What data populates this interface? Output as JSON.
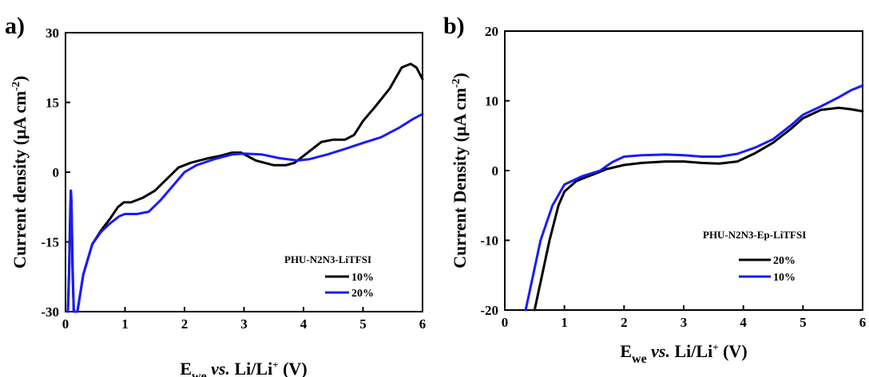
{
  "chart_data": [
    {
      "type": "line",
      "panel_label": "a)",
      "xlabel": {
        "main": "E",
        "sub": "we",
        "italic": "vs.",
        "rest": "Li/Li",
        "sup": "+",
        "unit": "(V)"
      },
      "ylabel": {
        "main": "Current density (μA cm",
        "sup": "-2",
        "end": ")"
      },
      "xlim": [
        0,
        6
      ],
      "ylim": [
        -30,
        30
      ],
      "xticks": [
        0,
        1,
        2,
        3,
        4,
        5,
        6
      ],
      "yticks": [
        -30,
        -15,
        0,
        15,
        30
      ],
      "grid": false,
      "legend": {
        "title": "PHU-N2N3-LiTFSI",
        "placement": "bottom-right"
      },
      "series": [
        {
          "name": "10%",
          "color": "#000000",
          "points": [
            [
              0.04,
              -30
            ],
            [
              0.06,
              -21
            ],
            [
              0.08,
              -8
            ],
            [
              0.09,
              -4
            ],
            [
              0.1,
              -8
            ],
            [
              0.12,
              -22
            ],
            [
              0.14,
              -30
            ],
            [
              0.15,
              -30
            ],
            [
              0.2,
              -30
            ],
            [
              0.3,
              -22
            ],
            [
              0.45,
              -15.5
            ],
            [
              0.6,
              -12.5
            ],
            [
              0.75,
              -10
            ],
            [
              0.88,
              -7.5
            ],
            [
              0.98,
              -6.5
            ],
            [
              1.1,
              -6.5
            ],
            [
              1.3,
              -5.5
            ],
            [
              1.5,
              -4
            ],
            [
              1.7,
              -1.5
            ],
            [
              1.9,
              1
            ],
            [
              2.1,
              2
            ],
            [
              2.4,
              3
            ],
            [
              2.6,
              3.5
            ],
            [
              2.8,
              4.2
            ],
            [
              2.95,
              4.2
            ],
            [
              3.2,
              2.5
            ],
            [
              3.5,
              1.5
            ],
            [
              3.7,
              1.5
            ],
            [
              3.85,
              2
            ],
            [
              4.05,
              4
            ],
            [
              4.3,
              6.5
            ],
            [
              4.5,
              7
            ],
            [
              4.7,
              7
            ],
            [
              4.85,
              8
            ],
            [
              5.0,
              11
            ],
            [
              5.2,
              14
            ],
            [
              5.45,
              18
            ],
            [
              5.65,
              22.5
            ],
            [
              5.8,
              23.3
            ],
            [
              5.9,
              22.5
            ],
            [
              6.0,
              20
            ]
          ]
        },
        {
          "name": "20%",
          "color": "#1a1aff",
          "points": [
            [
              0.04,
              -30
            ],
            [
              0.06,
              -22
            ],
            [
              0.08,
              -10
            ],
            [
              0.09,
              -4
            ],
            [
              0.1,
              -6
            ],
            [
              0.12,
              -20
            ],
            [
              0.14,
              -30
            ],
            [
              0.16,
              -30
            ],
            [
              0.2,
              -30
            ],
            [
              0.3,
              -22
            ],
            [
              0.45,
              -15.5
            ],
            [
              0.6,
              -12.8
            ],
            [
              0.75,
              -11
            ],
            [
              0.9,
              -9.5
            ],
            [
              1.0,
              -9
            ],
            [
              1.2,
              -9
            ],
            [
              1.4,
              -8.5
            ],
            [
              1.6,
              -6
            ],
            [
              1.8,
              -3
            ],
            [
              2.0,
              0
            ],
            [
              2.2,
              1.5
            ],
            [
              2.5,
              2.8
            ],
            [
              2.8,
              3.8
            ],
            [
              3.0,
              4
            ],
            [
              3.3,
              3.8
            ],
            [
              3.6,
              3
            ],
            [
              3.9,
              2.5
            ],
            [
              4.1,
              2.8
            ],
            [
              4.4,
              3.8
            ],
            [
              4.7,
              5
            ],
            [
              5.0,
              6.3
            ],
            [
              5.3,
              7.5
            ],
            [
              5.6,
              9.5
            ],
            [
              5.85,
              11.5
            ],
            [
              6.0,
              12.5
            ]
          ]
        }
      ]
    },
    {
      "type": "line",
      "panel_label": "b)",
      "xlabel": {
        "main": "E",
        "sub": "we",
        "italic": "vs.",
        "rest": "Li/Li",
        "sup": "+",
        "unit": "(V)"
      },
      "ylabel": {
        "main": "Current Density  (μA cm",
        "sup": "-2",
        "end": ")"
      },
      "xlim": [
        0,
        6
      ],
      "ylim": [
        -20,
        20
      ],
      "xticks": [
        0,
        1,
        2,
        3,
        4,
        5,
        6
      ],
      "yticks": [
        -20,
        -10,
        0,
        10,
        20
      ],
      "grid": false,
      "legend": {
        "title": "PHU-N2N3-Ep-LiTFSI",
        "placement": "bottom-right"
      },
      "series": [
        {
          "name": "20%",
          "color": "#000000",
          "points": [
            [
              0.5,
              -20
            ],
            [
              0.6,
              -16
            ],
            [
              0.75,
              -10
            ],
            [
              0.9,
              -5
            ],
            [
              1.0,
              -3
            ],
            [
              1.2,
              -1.5
            ],
            [
              1.5,
              -0.5
            ],
            [
              1.7,
              0.2
            ],
            [
              2.0,
              0.8
            ],
            [
              2.3,
              1.1
            ],
            [
              2.7,
              1.3
            ],
            [
              3.0,
              1.3
            ],
            [
              3.3,
              1.1
            ],
            [
              3.6,
              1.0
            ],
            [
              3.9,
              1.3
            ],
            [
              4.2,
              2.5
            ],
            [
              4.5,
              4
            ],
            [
              4.8,
              6
            ],
            [
              5.0,
              7.5
            ],
            [
              5.3,
              8.7
            ],
            [
              5.6,
              9
            ],
            [
              5.8,
              8.8
            ],
            [
              6.0,
              8.5
            ]
          ]
        },
        {
          "name": "10%",
          "color": "#1a1aff",
          "points": [
            [
              0.35,
              -20
            ],
            [
              0.45,
              -16
            ],
            [
              0.6,
              -10
            ],
            [
              0.8,
              -5
            ],
            [
              1.0,
              -2
            ],
            [
              1.3,
              -0.8
            ],
            [
              1.6,
              0
            ],
            [
              1.8,
              1.2
            ],
            [
              2.0,
              2.0
            ],
            [
              2.3,
              2.2
            ],
            [
              2.7,
              2.3
            ],
            [
              3.0,
              2.2
            ],
            [
              3.3,
              2.0
            ],
            [
              3.6,
              2.0
            ],
            [
              3.9,
              2.4
            ],
            [
              4.2,
              3.3
            ],
            [
              4.5,
              4.5
            ],
            [
              4.8,
              6.5
            ],
            [
              5.0,
              8
            ],
            [
              5.3,
              9.2
            ],
            [
              5.6,
              10.5
            ],
            [
              5.8,
              11.5
            ],
            [
              6.0,
              12.2
            ]
          ]
        }
      ]
    }
  ]
}
